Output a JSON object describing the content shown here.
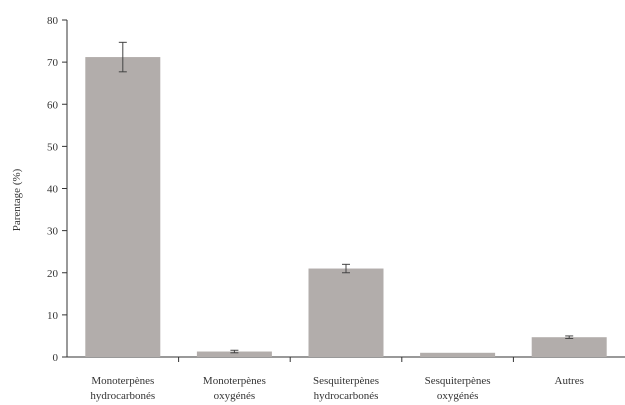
{
  "chart_data": {
    "type": "bar",
    "title": "",
    "xlabel": "",
    "ylabel": "Parentage (%)",
    "ylim": [
      0,
      80
    ],
    "yticks": [
      "0",
      "10",
      "20",
      "30",
      "40",
      "50",
      "60",
      "70",
      "80"
    ],
    "grid": false,
    "legend": "none",
    "categories": [
      [
        "Monoterpènes",
        "hydrocarbonés"
      ],
      [
        "Monoterpènes",
        "oxygénés"
      ],
      [
        "Sesquiterpènes",
        "hydrocarbonés"
      ],
      [
        "Sesquiterpènes",
        "oxygénés"
      ],
      [
        "Autres"
      ]
    ],
    "values": [
      71.2,
      1.3,
      21.0,
      1.0,
      4.7
    ],
    "errors": [
      3.5,
      0.3,
      1.0,
      0,
      0.3
    ],
    "bar_color": "#b2adab",
    "axis_color": "#333333"
  }
}
